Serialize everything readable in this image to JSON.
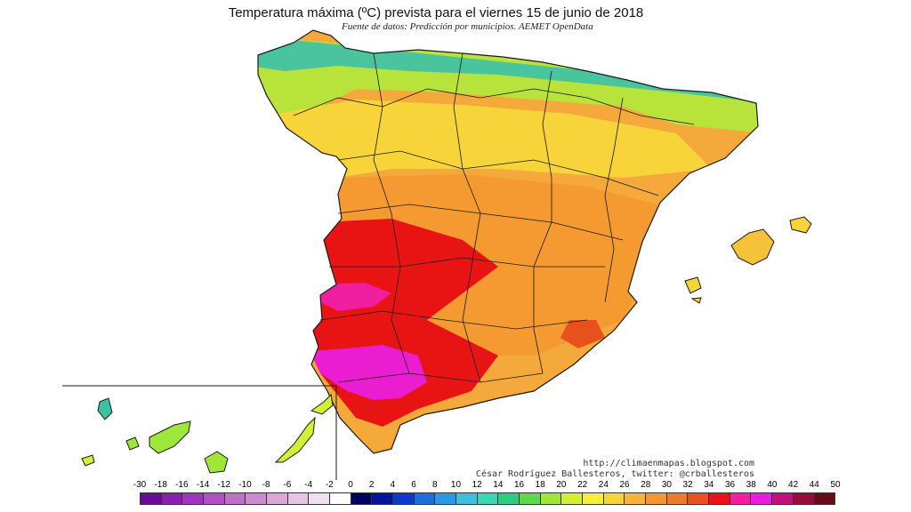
{
  "header": {
    "title": "Temperatura máxima (ºC) prevista para el viernes 15 de junio de 2018",
    "subtitle": "Fuente de datos: Predicción por municipios. AEMET OpenData"
  },
  "credits": {
    "line1": "http://climaenmapas.blogspot.com",
    "line2": "César Rodríguez Ballesteros, twitter: @crballesteros"
  },
  "legend": {
    "ticks": [
      "-30",
      "-18",
      "-16",
      "-14",
      "-12",
      "-10",
      "-8",
      "-6",
      "-4",
      "-2",
      "0",
      "2",
      "4",
      "6",
      "8",
      "10",
      "12",
      "14",
      "16",
      "18",
      "20",
      "22",
      "24",
      "26",
      "28",
      "30",
      "32",
      "34",
      "36",
      "38",
      "40",
      "42",
      "44",
      "50"
    ],
    "colors": [
      "#6a0a9a",
      "#8a1fb0",
      "#a033c0",
      "#b24fc7",
      "#c16ec9",
      "#cc8bcf",
      "#d8a8d8",
      "#e4c6e4",
      "#efe2ef",
      "#ffffff",
      "#000066",
      "#00149c",
      "#0a3cc8",
      "#1a6ee0",
      "#2a9ae8",
      "#3cc0e0",
      "#3cd6b4",
      "#2ecc80",
      "#5ed94a",
      "#9ee63a",
      "#d4ef38",
      "#f6ee3a",
      "#fbd43a",
      "#f8b43a",
      "#f5962e",
      "#f07a26",
      "#e8501e",
      "#e81414",
      "#f01ea0",
      "#e61ee6",
      "#c4107a",
      "#9a0a3c",
      "#6a0a18"
    ]
  },
  "map": {
    "regions": [
      "peninsula",
      "baleares",
      "canarias"
    ],
    "colors": {
      "north_coast": "#3cc0a0",
      "north": "#9ee63a",
      "plateau": "#f8b43a",
      "south": "#f07a26",
      "hot": "#e81414",
      "very_hot": "#f01ea0",
      "border": "#1a1a1a"
    }
  }
}
